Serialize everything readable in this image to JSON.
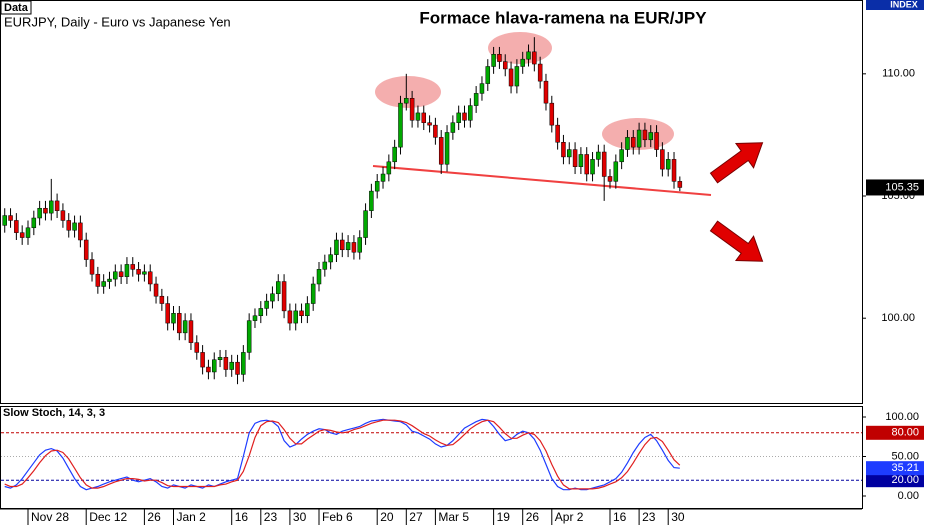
{
  "chart_data": [
    {
      "type": "candlestick",
      "title": "Formace hlava-ramena na EUR/JPY",
      "subtitle": "EURJPY, Daily - Euro vs Japanese Yen",
      "corner_label": "Data",
      "badge": "INDEX",
      "up_color": "#00a800",
      "down_color": "#e00000",
      "categories": [
        null,
        null,
        null,
        null,
        "Nov 28",
        null,
        null,
        null,
        null,
        null,
        null,
        null,
        null,
        null,
        "Dec 12",
        null,
        null,
        null,
        null,
        null,
        null,
        null,
        null,
        null,
        "26",
        null,
        null,
        null,
        null,
        "Jan 2",
        null,
        null,
        null,
        null,
        null,
        null,
        null,
        null,
        null,
        "16",
        null,
        null,
        null,
        null,
        "23",
        null,
        null,
        null,
        null,
        "30",
        null,
        null,
        null,
        null,
        "Feb 6",
        null,
        null,
        null,
        null,
        null,
        null,
        null,
        null,
        null,
        "20",
        null,
        null,
        null,
        null,
        "27",
        null,
        null,
        null,
        null,
        "Mar 5",
        null,
        null,
        null,
        null,
        null,
        null,
        null,
        null,
        null,
        "19",
        null,
        null,
        null,
        null,
        "26",
        null,
        null,
        null,
        null,
        "Apr 2",
        null,
        null,
        null,
        null,
        null,
        null,
        null,
        null,
        null,
        "16",
        null,
        null,
        null,
        null,
        "23",
        null,
        null,
        null,
        null,
        "30",
        null,
        null
      ],
      "open": [
        103.8,
        104.2,
        104.0,
        103.5,
        103.3,
        103.7,
        104.1,
        104.5,
        104.3,
        104.8,
        104.4,
        104.0,
        103.6,
        103.9,
        103.2,
        102.4,
        101.8,
        101.3,
        101.5,
        101.6,
        101.9,
        101.7,
        102.2,
        102.0,
        101.8,
        101.9,
        101.4,
        100.9,
        100.6,
        99.8,
        100.2,
        99.4,
        99.9,
        99.0,
        98.6,
        98.0,
        97.8,
        98.3,
        98.4,
        97.9,
        98.2,
        97.7,
        98.6,
        99.9,
        100.1,
        100.4,
        100.7,
        101.0,
        101.5,
        100.3,
        99.8,
        100.3,
        100.1,
        100.6,
        101.4,
        102.0,
        102.3,
        102.6,
        103.2,
        102.8,
        103.1,
        102.7,
        103.3,
        104.4,
        105.2,
        105.6,
        105.9,
        106.4,
        107.0,
        108.8,
        109.0,
        108.1,
        108.4,
        108.0,
        107.9,
        107.4,
        106.3,
        107.6,
        108.0,
        108.4,
        108.1,
        108.7,
        109.2,
        109.6,
        110.3,
        110.8,
        110.5,
        110.2,
        109.5,
        110.3,
        110.6,
        110.9,
        110.4,
        109.7,
        108.8,
        107.9,
        107.2,
        106.6,
        106.9,
        106.2,
        106.7,
        105.9,
        106.5,
        106.8,
        105.8,
        105.6,
        106.4,
        106.9,
        107.4,
        107.0,
        107.7,
        107.3,
        107.6,
        106.9,
        106.1,
        106.5,
        105.6
      ],
      "high": [
        104.5,
        104.5,
        104.3,
        103.8,
        104.0,
        104.4,
        104.8,
        104.8,
        105.7,
        105.1,
        104.7,
        104.3,
        104.2,
        104.2,
        103.5,
        102.7,
        102.1,
        101.8,
        101.9,
        102.2,
        102.2,
        102.5,
        102.5,
        102.3,
        102.2,
        102.2,
        101.7,
        101.2,
        100.9,
        100.5,
        100.5,
        100.2,
        100.2,
        99.3,
        98.9,
        98.3,
        98.6,
        98.7,
        98.7,
        98.5,
        98.5,
        98.9,
        100.2,
        100.4,
        100.7,
        101.0,
        101.3,
        101.8,
        101.8,
        100.6,
        100.6,
        100.6,
        100.9,
        101.7,
        102.3,
        102.6,
        102.9,
        103.5,
        103.5,
        103.4,
        103.4,
        103.6,
        104.7,
        105.5,
        105.9,
        106.2,
        106.7,
        107.3,
        109.1,
        110.0,
        109.3,
        108.7,
        108.7,
        108.3,
        108.2,
        107.7,
        107.9,
        108.3,
        108.7,
        108.7,
        109.0,
        109.5,
        109.9,
        110.6,
        111.1,
        111.1,
        110.8,
        110.5,
        110.6,
        110.9,
        111.2,
        111.5,
        110.7,
        110.0,
        109.1,
        108.2,
        107.5,
        107.2,
        107.2,
        107.0,
        107.0,
        106.8,
        107.1,
        107.1,
        106.1,
        106.7,
        107.2,
        107.7,
        107.7,
        108.0,
        108.0,
        107.9,
        107.9,
        107.2,
        106.8,
        106.8,
        105.8
      ],
      "low": [
        103.5,
        103.7,
        103.2,
        103.0,
        103.0,
        103.4,
        103.8,
        104.0,
        104.0,
        104.1,
        103.7,
        103.3,
        103.3,
        102.9,
        102.1,
        101.5,
        101.0,
        101.0,
        101.2,
        101.3,
        101.4,
        101.4,
        101.7,
        101.5,
        101.5,
        101.1,
        100.6,
        100.3,
        99.5,
        99.5,
        99.1,
        99.1,
        98.7,
        98.3,
        97.7,
        97.5,
        97.5,
        98.0,
        97.6,
        97.6,
        97.3,
        97.4,
        98.3,
        99.6,
        99.8,
        100.1,
        100.4,
        100.7,
        100.0,
        99.5,
        99.5,
        99.8,
        99.8,
        100.3,
        101.1,
        101.7,
        102.0,
        102.3,
        102.5,
        102.5,
        102.4,
        102.4,
        103.0,
        104.1,
        104.9,
        105.3,
        105.6,
        106.1,
        106.7,
        108.5,
        107.8,
        107.8,
        107.7,
        107.6,
        107.1,
        105.9,
        106.0,
        107.3,
        107.7,
        107.8,
        107.8,
        108.4,
        108.9,
        109.3,
        110.0,
        110.2,
        109.9,
        109.2,
        109.2,
        110.0,
        110.3,
        110.1,
        109.4,
        108.5,
        107.6,
        106.9,
        106.3,
        106.3,
        105.9,
        105.9,
        105.6,
        105.6,
        106.2,
        104.8,
        105.3,
        105.3,
        106.1,
        106.6,
        106.7,
        106.7,
        107.0,
        107.0,
        106.6,
        105.8,
        105.8,
        105.3,
        105.2
      ],
      "close": [
        104.2,
        104.0,
        103.5,
        103.3,
        103.7,
        104.1,
        104.5,
        104.3,
        104.8,
        104.4,
        104.0,
        103.6,
        103.9,
        103.2,
        102.4,
        101.8,
        101.3,
        101.5,
        101.6,
        101.9,
        101.7,
        102.2,
        102.0,
        101.8,
        101.9,
        101.4,
        100.9,
        100.6,
        99.8,
        100.2,
        99.4,
        99.9,
        99.0,
        98.6,
        98.0,
        97.8,
        98.3,
        98.4,
        97.9,
        98.2,
        97.7,
        98.6,
        99.9,
        100.1,
        100.4,
        100.7,
        101.0,
        101.5,
        100.3,
        99.8,
        100.3,
        100.1,
        100.6,
        101.4,
        102.0,
        102.3,
        102.6,
        103.2,
        102.8,
        103.1,
        102.7,
        103.3,
        104.4,
        105.2,
        105.6,
        105.9,
        106.4,
        107.0,
        108.8,
        109.0,
        108.1,
        108.4,
        108.0,
        107.9,
        107.4,
        106.3,
        107.6,
        108.0,
        108.4,
        108.1,
        108.7,
        109.2,
        109.6,
        110.3,
        110.8,
        110.5,
        110.2,
        109.5,
        110.3,
        110.6,
        110.9,
        110.4,
        109.7,
        108.8,
        107.9,
        107.2,
        106.6,
        106.9,
        106.2,
        106.7,
        105.9,
        106.5,
        106.8,
        105.8,
        105.6,
        106.4,
        106.9,
        107.4,
        107.0,
        107.7,
        107.3,
        107.6,
        106.9,
        106.1,
        106.5,
        105.6,
        105.35
      ],
      "ylim": [
        96.53,
        112.98
      ],
      "yticks": [
        {
          "value": 110,
          "label": "110.00"
        },
        {
          "value": 105,
          "label": "105.00"
        },
        {
          "value": 100,
          "label": "100.00"
        }
      ],
      "last_price": 105.35
    },
    {
      "type": "line",
      "title": "Slow Stoch, 14, 3, 3",
      "series": [
        {
          "color": "#1e3cff",
          "values": [
            12,
            10,
            14,
            22,
            32,
            42,
            52,
            58,
            60,
            57,
            48,
            35,
            22,
            12,
            8,
            10,
            12,
            15,
            18,
            20,
            22,
            24,
            20,
            18,
            20,
            22,
            18,
            12,
            10,
            14,
            12,
            10,
            14,
            12,
            10,
            14,
            12,
            15,
            18,
            20,
            22,
            50,
            80,
            92,
            95,
            96,
            94,
            88,
            70,
            62,
            65,
            72,
            78,
            82,
            85,
            84,
            80,
            78,
            82,
            84,
            86,
            88,
            92,
            95,
            96,
            97,
            96,
            95,
            94,
            90,
            82,
            80,
            76,
            72,
            66,
            62,
            64,
            70,
            78,
            86,
            90,
            94,
            97,
            96,
            88,
            78,
            70,
            72,
            78,
            82,
            80,
            72,
            58,
            40,
            22,
            12,
            8,
            8,
            10,
            8,
            8,
            10,
            12,
            14,
            18,
            22,
            30,
            42,
            55,
            66,
            74,
            78,
            70,
            58,
            45,
            36,
            35.21
          ]
        },
        {
          "color": "#e02020",
          "values": [
            15,
            12,
            12,
            15,
            23,
            32,
            42,
            51,
            57,
            58,
            55,
            47,
            35,
            23,
            14,
            10,
            10,
            12,
            15,
            18,
            20,
            22,
            22,
            21,
            19,
            20,
            20,
            17,
            13,
            12,
            12,
            12,
            12,
            12,
            12,
            12,
            12,
            14,
            15,
            18,
            20,
            31,
            51,
            74,
            89,
            94,
            95,
            93,
            84,
            73,
            66,
            66,
            72,
            77,
            82,
            84,
            83,
            81,
            80,
            81,
            84,
            86,
            89,
            92,
            94,
            96,
            96,
            96,
            95,
            93,
            89,
            84,
            79,
            76,
            71,
            67,
            64,
            65,
            71,
            78,
            85,
            90,
            94,
            96,
            94,
            87,
            79,
            73,
            73,
            77,
            80,
            78,
            70,
            57,
            40,
            25,
            14,
            9,
            9,
            9,
            9,
            9,
            10,
            12,
            15,
            18,
            23,
            31,
            42,
            54,
            65,
            73,
            74,
            69,
            58,
            46,
            39
          ]
        }
      ],
      "ylim": [
        -15.2,
        112.66
      ],
      "yticks": [
        {
          "value": 100,
          "label": "100.00"
        },
        {
          "value": 50,
          "label": "50.00"
        },
        {
          "value": 0,
          "label": "0.00"
        }
      ],
      "levels": [
        {
          "value": 80,
          "label": "80.00",
          "color": "#c00000"
        },
        {
          "value": 20,
          "label": "20.00",
          "color": "#0000a0"
        }
      ],
      "last_value": {
        "value": 35.21,
        "label": "35.21"
      }
    }
  ]
}
